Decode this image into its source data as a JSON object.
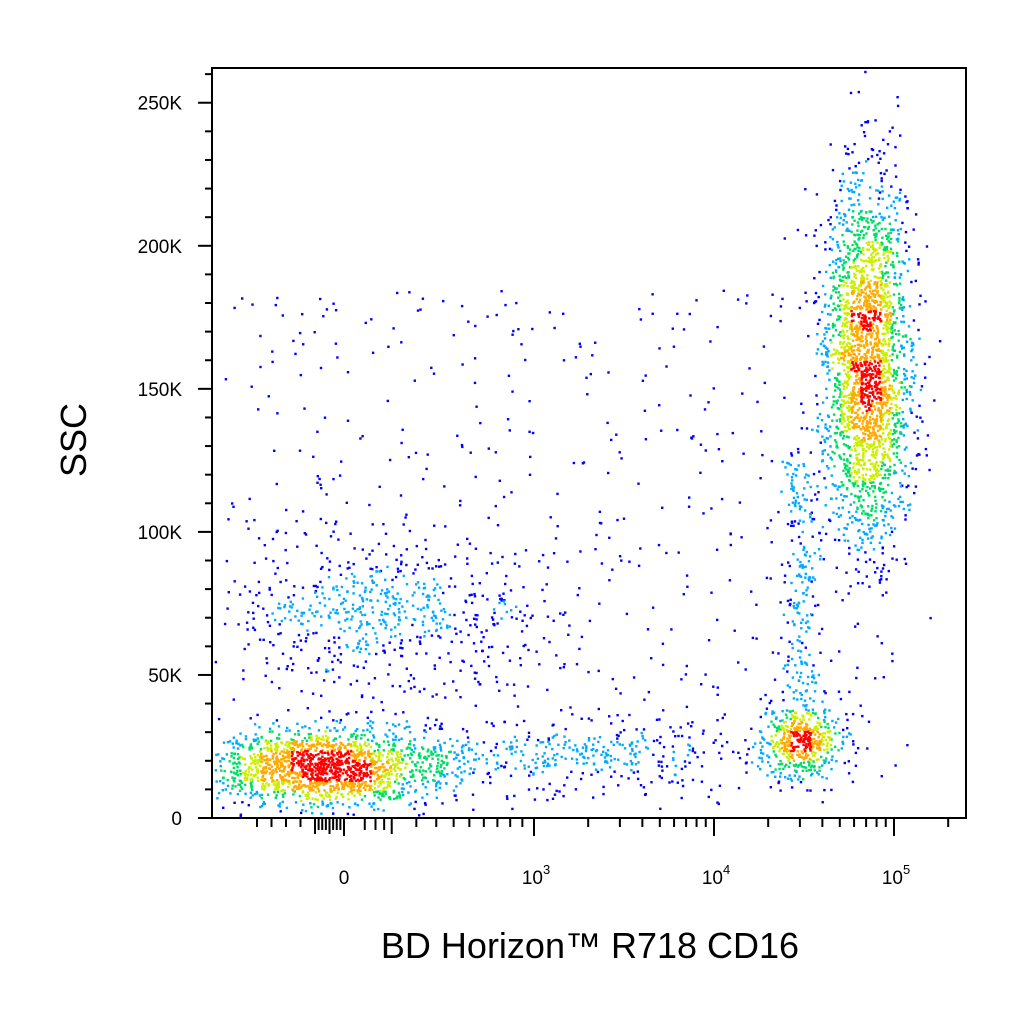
{
  "chart_data": {
    "type": "scatter",
    "plot_style": "pseudocolor density dot plot",
    "xlabel": "BD Horizon™ R718  CD16",
    "ylabel": "SSC",
    "x_scale": "biexponential",
    "y_scale": "linear",
    "ylim": [
      0,
      262144
    ],
    "xlim": [
      -700,
      200000
    ],
    "y_ticks": [
      {
        "value": 0,
        "label": "0"
      },
      {
        "value": 50000,
        "label": "50K"
      },
      {
        "value": 100000,
        "label": "100K"
      },
      {
        "value": 150000,
        "label": "150K"
      },
      {
        "value": 200000,
        "label": "200K"
      },
      {
        "value": 250000,
        "label": "250K"
      }
    ],
    "x_ticks": [
      {
        "value": 0,
        "base": "0",
        "exp": ""
      },
      {
        "value": 1000,
        "base": "10",
        "exp": "3"
      },
      {
        "value": 10000,
        "base": "10",
        "exp": "4"
      },
      {
        "value": 100000,
        "base": "10",
        "exp": "5"
      }
    ],
    "grid": false,
    "legend": "none",
    "density_colors": [
      "#0000ff",
      "#00aaff",
      "#00dd66",
      "#ccee00",
      "#ffaa00",
      "#ff0000"
    ],
    "populations": [
      {
        "x_center": -150,
        "y_center": 18000,
        "x_spread_decades": 0.35,
        "y_spread": 7000,
        "events": 1700
      },
      {
        "x_center": 1500,
        "y_center": 22000,
        "x_spread_decades": 0.6,
        "y_spread": 7000,
        "events": 380
      },
      {
        "x_center": 30000,
        "y_center": 27000,
        "x_spread_decades": 0.12,
        "y_spread": 7000,
        "events": 450
      },
      {
        "x_center": 80,
        "y_center": 72000,
        "x_spread_decades": 0.45,
        "y_spread": 14000,
        "events": 600
      },
      {
        "x_center": 70000,
        "y_center": 160000,
        "x_spread_decades": 0.12,
        "y_spread": 32000,
        "events": 2400
      }
    ]
  }
}
